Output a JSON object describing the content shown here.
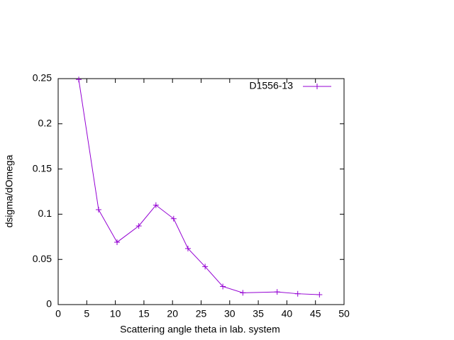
{
  "chart_data": {
    "type": "line",
    "xlabel": "Scattering angle theta in lab. system",
    "ylabel": "dsigma/dOmega",
    "x": [
      3.6,
      7.07,
      10.3,
      14.1,
      17.1,
      20.2,
      22.7,
      25.7,
      28.8,
      32.3,
      38.3,
      41.9,
      45.7
    ],
    "series": [
      {
        "name": "D1556-13",
        "color": "#9400d3",
        "values": [
          0.249,
          0.105,
          0.069,
          0.087,
          0.11,
          0.095,
          0.062,
          0.042,
          0.02,
          0.013,
          0.014,
          0.012,
          0.011
        ]
      }
    ],
    "xlim": [
      0,
      50
    ],
    "xticks": [
      0,
      5,
      10,
      15,
      20,
      25,
      30,
      35,
      40,
      45,
      50
    ],
    "ylim": [
      0,
      0.25
    ],
    "yticks": [
      0,
      0.05,
      0.1,
      0.15,
      0.2,
      0.25
    ],
    "legend": "top-right"
  }
}
